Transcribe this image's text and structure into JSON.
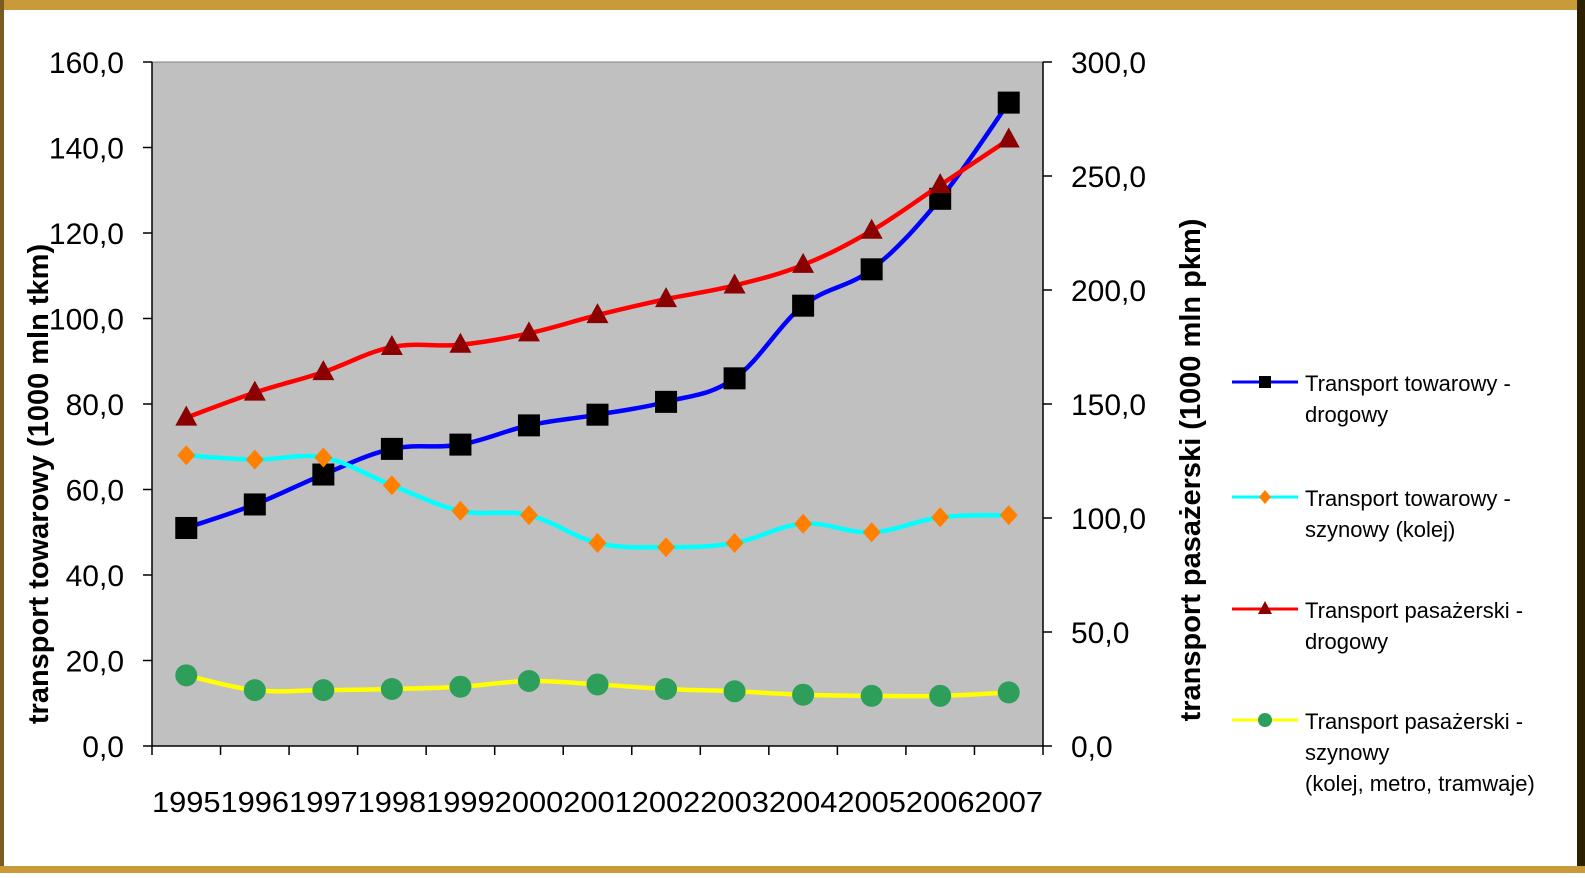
{
  "chart_data": {
    "type": "line",
    "categories": [
      "1995",
      "1996",
      "1997",
      "1998",
      "1999",
      "2000",
      "2001",
      "2002",
      "2003",
      "2004",
      "2005",
      "2006",
      "2007"
    ],
    "y_left": {
      "label": "transport towarowy (1000 mln tkm)",
      "range": [
        0,
        160
      ],
      "ticks": [
        "0,0",
        "20,0",
        "40,0",
        "60,0",
        "80,0",
        "100,0",
        "120,0",
        "140,0",
        "160,0"
      ]
    },
    "y_right": {
      "label": "transport pasażerski (1000 mln pkm)",
      "range": [
        0,
        300
      ],
      "ticks": [
        "0,0",
        "50,0",
        "100,0",
        "150,0",
        "200,0",
        "250,0",
        "300,0"
      ]
    },
    "grid": false,
    "plot_background": "#c0c0c0",
    "legend_position": "right",
    "series": [
      {
        "name": [
          "Transport towarowy -",
          "drogowy"
        ],
        "axis": "left",
        "line_color": "#0000ff",
        "marker": "square",
        "marker_color": "#000000",
        "values": [
          51.0,
          56.5,
          63.5,
          69.5,
          70.5,
          75.0,
          77.5,
          80.5,
          86.0,
          103.0,
          111.5,
          128.0,
          150.5
        ]
      },
      {
        "name": [
          "Transport towarowy -",
          "szynowy (kolej)"
        ],
        "axis": "left",
        "line_color": "#00ffff",
        "marker": "diamond",
        "marker_color": "#ff8000",
        "values": [
          68.0,
          67.0,
          67.5,
          61.0,
          55.0,
          54.0,
          47.5,
          46.5,
          47.5,
          52.0,
          50.0,
          53.5,
          54.0
        ]
      },
      {
        "name": [
          "Transport pasażerski -",
          "drogowy"
        ],
        "axis": "right",
        "line_color": "#ff0000",
        "marker": "triangle",
        "marker_color": "#8b0000",
        "values": [
          144.0,
          155.0,
          164.0,
          175.0,
          176.0,
          181.0,
          189.0,
          196.0,
          202.0,
          211.0,
          226.0,
          246.0,
          266.0
        ]
      },
      {
        "name": [
          "Transport pasażerski -",
          "szynowy",
          "(kolej, metro, tramwaje)"
        ],
        "axis": "right",
        "line_color": "#ffff00",
        "marker": "circle",
        "marker_color": "#2e9e5b",
        "values": [
          31.0,
          24.5,
          24.5,
          25.0,
          26.0,
          28.5,
          27.0,
          25.0,
          24.0,
          22.5,
          22.0,
          22.0,
          23.5
        ]
      }
    ]
  }
}
